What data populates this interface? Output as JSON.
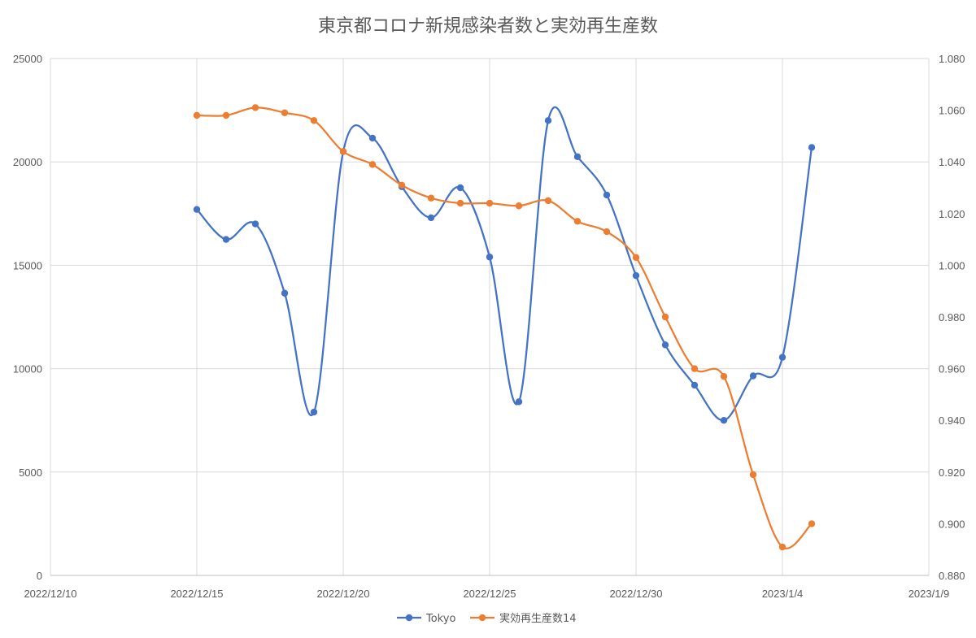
{
  "chart_data": {
    "type": "line",
    "title": "東京都コロナ新規感染者数と実効再生産数",
    "x_axis": {
      "min": "2022-12-10",
      "max": "2023-01-09",
      "tick_labels": [
        "2022/12/10",
        "2022/12/15",
        "2022/12/20",
        "2022/12/25",
        "2022/12/30",
        "2023/1/4",
        "2023/1/9"
      ]
    },
    "y_left": {
      "min": 0,
      "max": 25000,
      "tick_labels": [
        "0",
        "5000",
        "10000",
        "15000",
        "20000",
        "25000"
      ]
    },
    "y_right": {
      "min": 0.88,
      "max": 1.08,
      "tick_labels": [
        "0.880",
        "0.900",
        "0.920",
        "0.940",
        "0.960",
        "0.980",
        "1.000",
        "1.020",
        "1.040",
        "1.060",
        "1.080"
      ]
    },
    "grid": "vertical",
    "legend_position": "bottom",
    "series": [
      {
        "name": "Tokyo",
        "axis": "left",
        "color": "#4472C4",
        "points": [
          [
            "2022-12-15",
            17700
          ],
          [
            "2022-12-16",
            16250
          ],
          [
            "2022-12-17",
            17000
          ],
          [
            "2022-12-18",
            13650
          ],
          [
            "2022-12-19",
            7900
          ],
          [
            "2022-12-20",
            20500
          ],
          [
            "2022-12-21",
            21150
          ],
          [
            "2022-12-22",
            18800
          ],
          [
            "2022-12-23",
            17300
          ],
          [
            "2022-12-24",
            18750
          ],
          [
            "2022-12-25",
            15400
          ],
          [
            "2022-12-26",
            8400
          ],
          [
            "2022-12-27",
            22000
          ],
          [
            "2022-12-28",
            20250
          ],
          [
            "2022-12-29",
            18400
          ],
          [
            "2022-12-30",
            14500
          ],
          [
            "2022-12-31",
            11150
          ],
          [
            "2023-01-01",
            9200
          ],
          [
            "2023-01-02",
            7500
          ],
          [
            "2023-01-03",
            9650
          ],
          [
            "2023-01-04",
            10550
          ],
          [
            "2023-01-05",
            20700
          ]
        ]
      },
      {
        "name": "実効再生産数14",
        "axis": "right",
        "color": "#ED7D31",
        "points": [
          [
            "2022-12-15",
            1.058
          ],
          [
            "2022-12-16",
            1.058
          ],
          [
            "2022-12-17",
            1.061
          ],
          [
            "2022-12-18",
            1.059
          ],
          [
            "2022-12-19",
            1.056
          ],
          [
            "2022-12-20",
            1.044
          ],
          [
            "2022-12-21",
            1.039
          ],
          [
            "2022-12-22",
            1.031
          ],
          [
            "2022-12-23",
            1.026
          ],
          [
            "2022-12-24",
            1.024
          ],
          [
            "2022-12-25",
            1.024
          ],
          [
            "2022-12-26",
            1.023
          ],
          [
            "2022-12-27",
            1.025
          ],
          [
            "2022-12-28",
            1.017
          ],
          [
            "2022-12-29",
            1.013
          ],
          [
            "2022-12-30",
            1.003
          ],
          [
            "2022-12-31",
            0.98
          ],
          [
            "2023-01-01",
            0.96
          ],
          [
            "2023-01-02",
            0.957
          ],
          [
            "2023-01-03",
            0.919
          ],
          [
            "2023-01-04",
            0.891
          ],
          [
            "2023-01-05",
            0.9
          ]
        ]
      }
    ]
  }
}
